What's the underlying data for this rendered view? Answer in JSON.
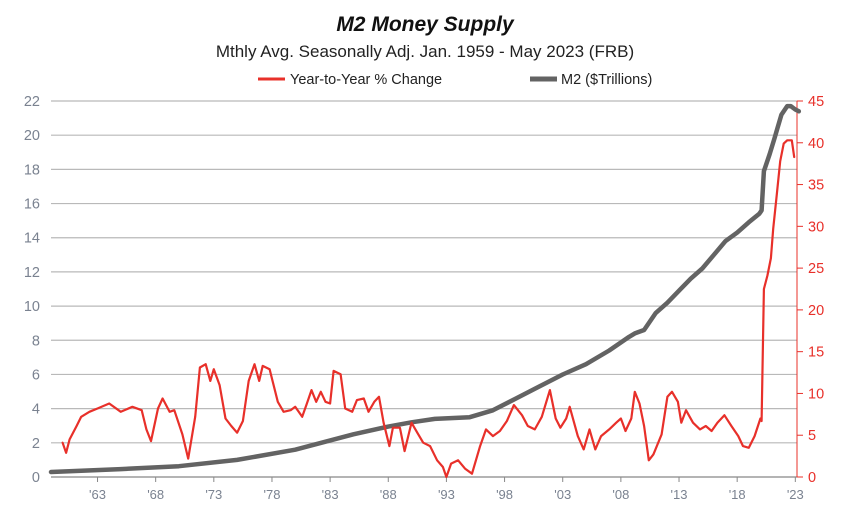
{
  "chart_data": {
    "type": "line",
    "title": "M2 Money Supply",
    "subtitle": "Mthly Avg. Seasonally Adj. Jan. 1959 - May 2023  (FRB)",
    "legend_placement": "top-center",
    "grid": true,
    "xlim": [
      1959,
      2023.4
    ],
    "x_tick_labels": [
      "'63",
      "'68",
      "'73",
      "'78",
      "'83",
      "'88",
      "'93",
      "'98",
      "'03",
      "'08",
      "'13",
      "'18",
      "'23"
    ],
    "x_tick_years": [
      1963,
      1968,
      1973,
      1978,
      1983,
      1988,
      1993,
      1998,
      2003,
      2008,
      2013,
      2018,
      2023
    ],
    "left_axis": {
      "ylim": [
        0,
        22
      ],
      "ticks": [
        0,
        2,
        4,
        6,
        8,
        10,
        12,
        14,
        16,
        18,
        20,
        22
      ],
      "color": "#7a8290"
    },
    "right_axis": {
      "ylim": [
        0,
        45
      ],
      "ticks": [
        0,
        5,
        10,
        15,
        20,
        25,
        30,
        35,
        40,
        45
      ],
      "color": "#e8302a"
    },
    "series": [
      {
        "name": "Year-to-Year % Change",
        "axis": "right",
        "color": "#e8302a",
        "x": [
          1960.0,
          1960.3,
          1960.6,
          1961.2,
          1961.6,
          1962.3,
          1963,
          1964,
          1965,
          1966,
          1966.8,
          1967.2,
          1967.6,
          1968.2,
          1968.6,
          1969.2,
          1969.6,
          1970.3,
          1970.8,
          1971.4,
          1971.8,
          1972.3,
          1972.7,
          1973,
          1973.5,
          1974,
          1974.5,
          1975,
          1975.5,
          1976,
          1976.5,
          1976.9,
          1977.2,
          1977.8,
          1978.5,
          1979,
          1979.6,
          1980,
          1980.6,
          1981,
          1981.4,
          1981.8,
          1982.2,
          1982.6,
          1983,
          1983.3,
          1983.9,
          1984.3,
          1984.9,
          1985.3,
          1985.9,
          1986.3,
          1986.8,
          1987.2,
          1987.6,
          1988.1,
          1988.4,
          1989,
          1989.4,
          1990,
          1990.5,
          1991,
          1991.6,
          1992.2,
          1992.7,
          1993,
          1993.4,
          1994,
          1994.6,
          1995.2,
          1995.9,
          1996.4,
          1997,
          1997.6,
          1998.2,
          1998.8,
          1999.5,
          2000,
          2000.6,
          2001.2,
          2001.9,
          2002.4,
          2002.8,
          2003.3,
          2003.6,
          2004.3,
          2004.8,
          2005.3,
          2005.8,
          2006.3,
          2007,
          2007.6,
          2008,
          2008.4,
          2008.9,
          2009.2,
          2009.6,
          2010,
          2010.4,
          2010.8,
          2011.5,
          2012,
          2012.4,
          2012.9,
          2013.2,
          2013.6,
          2014.2,
          2014.8,
          2015.3,
          2015.8,
          2016.3,
          2016.9,
          2017.5,
          2018.1,
          2018.5,
          2019,
          2019.5,
          2020,
          2020.1,
          2020.3,
          2020.6,
          2020.9,
          2021.1,
          2021.4,
          2021.7,
          2022.0,
          2022.3,
          2022.7,
          2022.9
        ],
        "values": [
          4.1,
          2.9,
          4.5,
          6.1,
          7.2,
          7.8,
          8.2,
          8.8,
          7.8,
          8.4,
          8.0,
          5.7,
          4.3,
          8.2,
          9.4,
          7.8,
          8.0,
          5.1,
          2.2,
          7.2,
          13.1,
          13.5,
          11.5,
          12.9,
          11.0,
          7.0,
          6.1,
          5.3,
          6.7,
          11.5,
          13.5,
          11.5,
          13.3,
          12.9,
          9.0,
          7.8,
          8.0,
          8.4,
          7.2,
          8.8,
          10.4,
          9.0,
          10.2,
          9.0,
          8.8,
          12.7,
          12.3,
          8.2,
          7.8,
          9.2,
          9.4,
          7.8,
          9.0,
          9.6,
          6.5,
          3.7,
          5.9,
          5.9,
          3.1,
          6.5,
          5.3,
          4.1,
          3.7,
          2.0,
          1.2,
          0.0,
          1.6,
          2.0,
          1.0,
          0.4,
          3.7,
          5.7,
          4.9,
          5.5,
          6.7,
          8.6,
          7.4,
          6.1,
          5.7,
          7.2,
          10.4,
          7.0,
          5.9,
          7.0,
          8.4,
          4.9,
          3.3,
          5.7,
          3.3,
          4.9,
          5.7,
          6.5,
          7.0,
          5.5,
          7.0,
          10.2,
          8.8,
          6.1,
          2.0,
          2.7,
          5.1,
          9.6,
          10.2,
          9.0,
          6.5,
          8.0,
          6.5,
          5.7,
          6.1,
          5.5,
          6.5,
          7.4,
          6.1,
          4.9,
          3.7,
          3.5,
          4.9,
          7.0,
          6.7,
          22.5,
          24.1,
          26.2,
          29.7,
          33.7,
          37.8,
          39.9,
          40.3,
          40.3,
          38.3
        ]
      },
      {
        "name": "M2 ($Trillions)",
        "axis": "left",
        "color": "#636363",
        "x": [
          1959,
          1965,
          1970,
          1975,
          1980,
          1985,
          1988,
          1990,
          1992,
          1995,
          1997,
          1999,
          2001,
          2003,
          2005,
          2007,
          2008.7,
          2009.2,
          2010,
          2011,
          2012,
          2013,
          2014,
          2015,
          2016,
          2017,
          2018,
          2019,
          2019.9,
          2020.1,
          2020.3,
          2020.8,
          2021.2,
          2021.8,
          2022.3,
          2022.6,
          2023.0,
          2023.3
        ],
        "values": [
          0.29,
          0.46,
          0.63,
          1.0,
          1.6,
          2.5,
          2.95,
          3.2,
          3.4,
          3.5,
          3.9,
          4.6,
          5.3,
          6.0,
          6.6,
          7.4,
          8.2,
          8.4,
          8.6,
          9.6,
          10.2,
          10.9,
          11.6,
          12.2,
          13.0,
          13.8,
          14.3,
          14.9,
          15.4,
          15.6,
          17.9,
          18.9,
          19.8,
          21.2,
          21.7,
          21.7,
          21.5,
          21.4
        ]
      }
    ]
  }
}
